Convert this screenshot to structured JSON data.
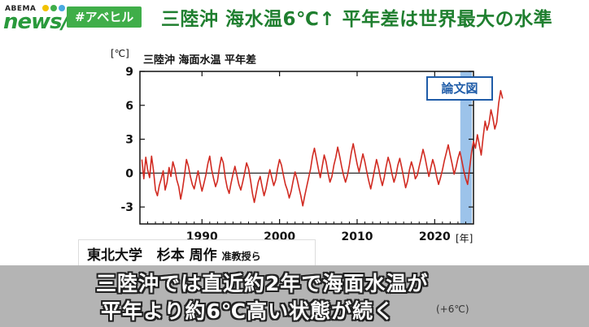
{
  "header": {
    "logo_small": "ABEMA",
    "logo_main": "news/",
    "logo_dot_colors": [
      "#f2c200",
      "#3fae49",
      "#49a9e0"
    ],
    "tag": "#アベヒル",
    "headline": "三陸沖 海水温6℃↑ 平年差は世界最大の水準"
  },
  "badge": "論文図",
  "chart_data": {
    "type": "line",
    "title": "三陸沖 海面水温 平年差",
    "ylabel": "[℃]",
    "xlabel": "[年]",
    "xlim": [
      1982,
      2025
    ],
    "ylim": [
      -4.5,
      9
    ],
    "yticks": [
      -3,
      0,
      3,
      6,
      9
    ],
    "xticks": [
      1990,
      2000,
      2010,
      2020
    ],
    "grid": false,
    "zero_line": true,
    "highlight_range": [
      2023.3,
      2024.8
    ],
    "series": [
      {
        "x_start": 1982.25,
        "x_step": 0.25,
        "values": [
          1.2,
          -0.5,
          1.4,
          0.3,
          -0.4,
          1.5,
          0.2,
          -1.5,
          -2.0,
          -1.1,
          -0.5,
          0.2,
          -1.5,
          -0.8,
          0.5,
          -0.3,
          1.0,
          0.4,
          -0.6,
          -1.2,
          -2.3,
          -1.4,
          -0.2,
          1.2,
          0.6,
          -0.3,
          -1.0,
          -1.4,
          -0.6,
          0.2,
          -0.8,
          -1.6,
          -0.9,
          -0.2,
          0.8,
          1.5,
          0.3,
          -0.5,
          -1.2,
          -0.7,
          0.5,
          1.4,
          0.9,
          -0.4,
          -1.3,
          -1.8,
          -0.9,
          -0.1,
          0.6,
          -0.2,
          -1.0,
          -1.5,
          -0.8,
          0.0,
          0.9,
          0.4,
          -0.6,
          -1.8,
          -2.6,
          -1.7,
          -0.8,
          -0.3,
          -1.2,
          -2.0,
          -1.4,
          -0.5,
          0.3,
          -0.4,
          -1.1,
          -0.6,
          0.4,
          1.2,
          0.7,
          -0.2,
          -1.0,
          -1.5,
          -2.2,
          -1.6,
          -0.7,
          0.1,
          -0.5,
          -1.3,
          -2.0,
          -2.9,
          -2.0,
          -1.2,
          -0.4,
          0.4,
          1.5,
          2.2,
          1.3,
          0.4,
          -0.4,
          0.6,
          1.6,
          1.0,
          0.0,
          -0.8,
          -0.3,
          0.7,
          1.4,
          2.3,
          1.5,
          0.6,
          -0.2,
          -0.8,
          -0.2,
          0.7,
          1.8,
          2.6,
          1.7,
          0.8,
          0.1,
          0.9,
          1.7,
          1.0,
          0.1,
          -0.7,
          -1.4,
          -0.6,
          0.3,
          1.2,
          0.5,
          -0.4,
          -1.1,
          -0.4,
          0.6,
          1.4,
          0.8,
          -0.1,
          -0.8,
          -0.2,
          0.7,
          1.3,
          0.5,
          -0.4,
          -1.3,
          -0.7,
          0.3,
          1.0,
          0.4,
          -0.5,
          -0.2,
          0.6,
          1.3,
          2.1,
          1.4,
          0.5,
          -0.3,
          0.5,
          1.2,
          0.6,
          -0.3,
          -1.0,
          -0.4,
          0.3,
          1.1,
          1.8,
          2.5,
          1.6,
          0.8,
          -0.1,
          0.5,
          1.3,
          1.9,
          1.1,
          0.2,
          -0.5,
          -1.0,
          0.4,
          1.8,
          2.8,
          2.2,
          3.4,
          2.5,
          1.6,
          3.2,
          4.6,
          3.8,
          4.4,
          5.6,
          4.9,
          3.9,
          4.5,
          6.2,
          7.3,
          6.6
        ]
      }
    ],
    "line_color": "#d12b22",
    "highlight_color": "#9cc3ea"
  },
  "credit": {
    "org": "東北大学",
    "name": "杉本 周作",
    "role": "准教授ら"
  },
  "subtitle": {
    "line1": "三陸沖では直近約2年で海面水温が",
    "line2": "平年より約6℃高い状態が続く",
    "aside": "(+6℃)"
  }
}
